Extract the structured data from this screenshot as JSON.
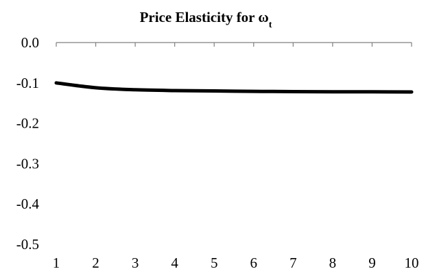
{
  "chart_data": {
    "type": "line",
    "title": "Price Elasticity for ω",
    "title_subscript": "t",
    "xlabel": "",
    "ylabel": "",
    "x": [
      1,
      2,
      3,
      4,
      5,
      6,
      7,
      8,
      9,
      10
    ],
    "x_tick_labels": [
      "1",
      "2",
      "3",
      "4",
      "5",
      "6",
      "7",
      "8",
      "9",
      "10"
    ],
    "y_tick_labels": [
      "0.0",
      "-0.1",
      "-0.2",
      "-0.3",
      "-0.4",
      "-0.5"
    ],
    "y_ticks": [
      0.0,
      -0.1,
      -0.2,
      -0.3,
      -0.4,
      -0.5
    ],
    "ylim": [
      -0.5,
      0.0
    ],
    "xlim": [
      1,
      10
    ],
    "grid": false,
    "legend": "none",
    "series": [
      {
        "values": [
          -0.1,
          -0.112,
          -0.117,
          -0.119,
          -0.12,
          -0.121,
          -0.1215,
          -0.122,
          -0.122,
          -0.1225
        ],
        "color": "#000000"
      }
    ]
  }
}
